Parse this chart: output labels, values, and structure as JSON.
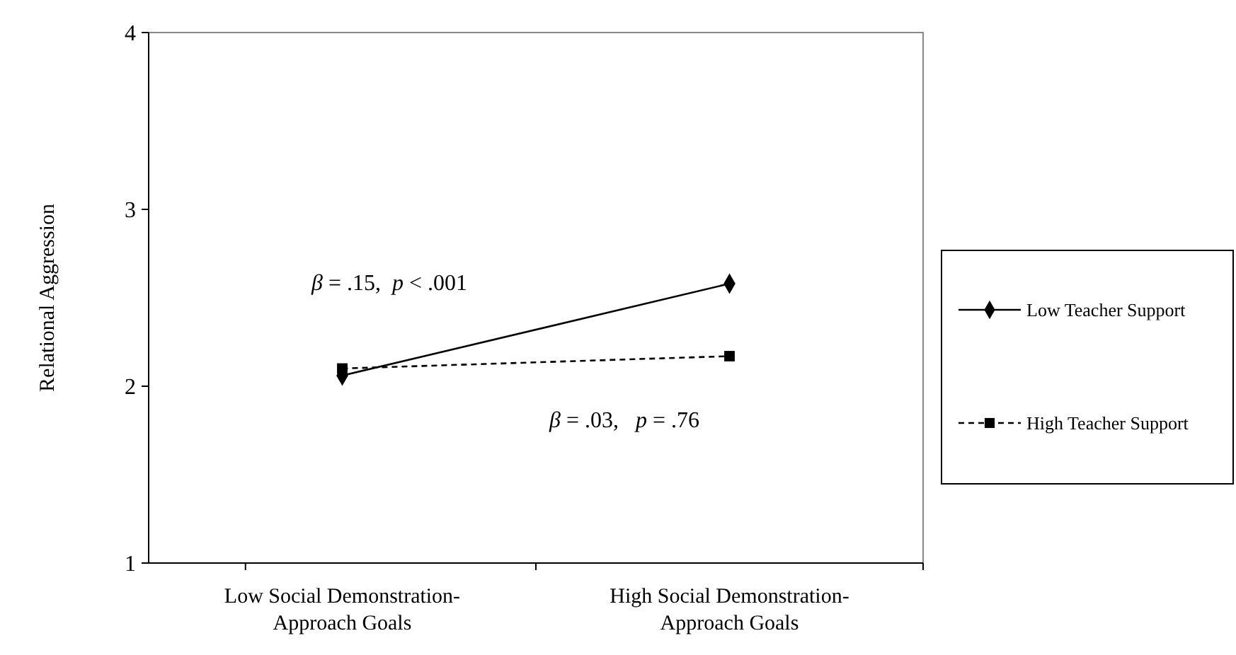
{
  "chart_data": {
    "type": "line",
    "ylabel": "Relational Aggression",
    "categories": [
      "Low Social Demonstration-\nApproach Goals",
      "High Social Demonstration-\nApproach Goals"
    ],
    "series": [
      {
        "name": "Low Teacher Support",
        "color": "#000000",
        "values": [
          2.06,
          2.58
        ],
        "marker": "diamond",
        "line_style": "solid"
      },
      {
        "name": "High Teacher Support",
        "color": "#000000",
        "values": [
          2.1,
          2.17
        ],
        "marker": "square",
        "line_style": "dashed"
      }
    ],
    "ylim": [
      1,
      4
    ],
    "yticks": [
      1,
      2,
      3,
      4
    ],
    "grid": false,
    "legend": "right",
    "annotations": [
      "β = .15,  p < .001",
      "β = .03,   p = .76"
    ]
  }
}
